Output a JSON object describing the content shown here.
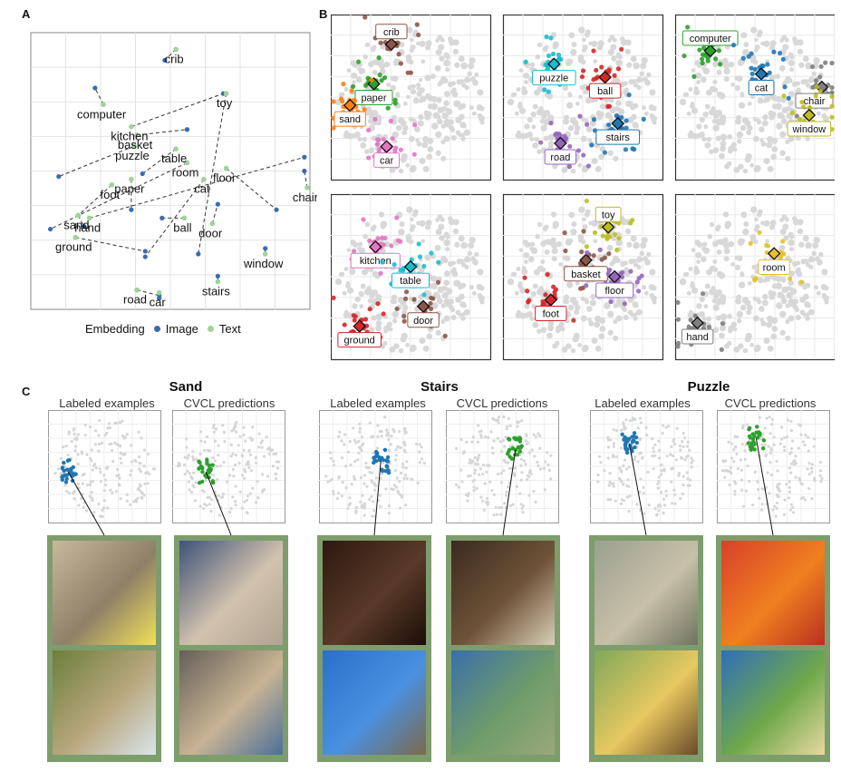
{
  "panels": {
    "a": "A",
    "b": "B",
    "c": "C"
  },
  "colors": {
    "image": "#3a6bb0",
    "text": "#9fd39a",
    "grid": "#e3e3e3",
    "points": "#d8d8d8",
    "frame": "#7e9d6c"
  },
  "chart_data": [
    {
      "type": "scatter",
      "panel": "A",
      "legend": {
        "title": "Embedding",
        "entries": [
          "Image",
          "Text"
        ],
        "placement": "bottom"
      },
      "words": [
        {
          "label": "crib",
          "text": [
            0.52,
            0.94
          ],
          "image": [
            0.48,
            0.9
          ]
        },
        {
          "label": "computer",
          "text": [
            0.26,
            0.74
          ],
          "image": [
            0.23,
            0.8
          ]
        },
        {
          "label": "kitchen",
          "text": [
            0.36,
            0.66
          ],
          "image": [
            0.69,
            0.78
          ]
        },
        {
          "label": "basket",
          "text": [
            0.38,
            0.63
          ],
          "image": [
            0.56,
            0.65
          ]
        },
        {
          "label": "toy",
          "text": [
            0.7,
            0.78
          ],
          "image": [
            0.6,
            0.2
          ]
        },
        {
          "label": "puzzle",
          "text": [
            0.37,
            0.59
          ],
          "image": [
            0.1,
            0.48
          ]
        },
        {
          "label": "table",
          "text": [
            0.52,
            0.58
          ],
          "image": [
            0.4,
            0.49
          ]
        },
        {
          "label": "room",
          "text": [
            0.56,
            0.53
          ],
          "image": [
            0.07,
            0.29
          ]
        },
        {
          "label": "floor",
          "text": [
            0.7,
            0.51
          ],
          "image": [
            0.88,
            0.36
          ]
        },
        {
          "label": "cat",
          "text": [
            0.62,
            0.47
          ],
          "image": [
            0.41,
            0.19
          ]
        },
        {
          "label": "paper",
          "text": [
            0.36,
            0.47
          ],
          "image": [
            0.36,
            0.36
          ]
        },
        {
          "label": "chair",
          "text": [
            0.99,
            0.44
          ],
          "image": [
            0.98,
            0.5
          ]
        },
        {
          "label": "foot",
          "text": [
            0.29,
            0.45
          ],
          "image": [
            0.17,
            0.34
          ]
        },
        {
          "label": "sand",
          "text": [
            0.17,
            0.34
          ],
          "image": [
            0.19,
            0.3
          ]
        },
        {
          "label": "hand",
          "text": [
            0.21,
            0.33
          ],
          "image": [
            0.98,
            0.55
          ]
        },
        {
          "label": "ball",
          "text": [
            0.55,
            0.33
          ],
          "image": [
            0.47,
            0.33
          ]
        },
        {
          "label": "door",
          "text": [
            0.65,
            0.31
          ],
          "image": [
            0.67,
            0.38
          ]
        },
        {
          "label": "ground",
          "text": [
            0.16,
            0.26
          ],
          "image": [
            0.41,
            0.21
          ]
        },
        {
          "label": "window",
          "text": [
            0.84,
            0.2
          ],
          "image": [
            0.84,
            0.22
          ]
        },
        {
          "label": "road",
          "text": [
            0.38,
            0.07
          ],
          "image": [
            0.46,
            0.05
          ]
        },
        {
          "label": "stairs",
          "text": [
            0.67,
            0.1
          ],
          "image": [
            0.67,
            0.12
          ]
        },
        {
          "label": "car",
          "text": [
            0.46,
            0.06
          ],
          "image": [
            0.46,
            0.04
          ]
        }
      ]
    },
    {
      "type": "scatter",
      "panel": "B",
      "subplots": [
        {
          "items": [
            {
              "label": "crib",
              "color": "#8c564b",
              "x": 0.38,
              "y": 0.82
            },
            {
              "label": "paper",
              "color": "#2ca02c",
              "x": 0.27,
              "y": 0.58
            },
            {
              "label": "sand",
              "color": "#ff7f0e",
              "x": 0.12,
              "y": 0.45
            },
            {
              "label": "car",
              "color": "#e377c2",
              "x": 0.35,
              "y": 0.2
            }
          ]
        },
        {
          "items": [
            {
              "label": "puzzle",
              "color": "#17becf",
              "x": 0.32,
              "y": 0.7
            },
            {
              "label": "ball",
              "color": "#d62728",
              "x": 0.64,
              "y": 0.62
            },
            {
              "label": "stairs",
              "color": "#1f77b4",
              "x": 0.72,
              "y": 0.34
            },
            {
              "label": "road",
              "color": "#9467bd",
              "x": 0.36,
              "y": 0.22
            }
          ]
        },
        {
          "items": [
            {
              "label": "computer",
              "color": "#2ca02c",
              "x": 0.22,
              "y": 0.78
            },
            {
              "label": "cat",
              "color": "#1f77b4",
              "x": 0.54,
              "y": 0.64
            },
            {
              "label": "chair",
              "color": "#7f7f7f",
              "x": 0.92,
              "y": 0.56
            },
            {
              "label": "window",
              "color": "#bcbd22",
              "x": 0.84,
              "y": 0.39
            }
          ]
        },
        {
          "items": [
            {
              "label": "kitchen",
              "color": "#e377c2",
              "x": 0.28,
              "y": 0.68
            },
            {
              "label": "table",
              "color": "#17becf",
              "x": 0.5,
              "y": 0.56
            },
            {
              "label": "door",
              "color": "#8c564b",
              "x": 0.58,
              "y": 0.32
            },
            {
              "label": "ground",
              "color": "#d62728",
              "x": 0.18,
              "y": 0.2
            }
          ]
        },
        {
          "items": [
            {
              "label": "toy",
              "color": "#bcbd22",
              "x": 0.66,
              "y": 0.8
            },
            {
              "label": "basket",
              "color": "#8c564b",
              "x": 0.52,
              "y": 0.6
            },
            {
              "label": "floor",
              "color": "#9467bd",
              "x": 0.7,
              "y": 0.5
            },
            {
              "label": "foot",
              "color": "#d62728",
              "x": 0.3,
              "y": 0.36
            }
          ]
        },
        {
          "items": [
            {
              "label": "room",
              "color": "#e6c229",
              "x": 0.62,
              "y": 0.64
            },
            {
              "label": "hand",
              "color": "#7f7f7f",
              "x": 0.14,
              "y": 0.22
            }
          ]
        }
      ]
    }
  ],
  "panel_c": {
    "groups": [
      {
        "title": "Sand",
        "labeled": "Labeled examples",
        "predictions": "CVCL predictions"
      },
      {
        "title": "Stairs",
        "labeled": "Labeled examples",
        "predictions": "CVCL predictions"
      },
      {
        "title": "Puzzle",
        "labeled": "Labeled examples",
        "predictions": "CVCL predictions"
      }
    ]
  }
}
